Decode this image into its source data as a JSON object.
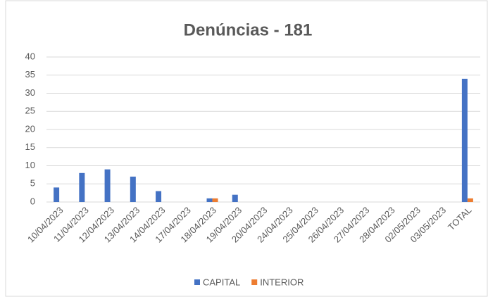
{
  "chart_data": {
    "type": "bar",
    "title": "Denúncias - 181",
    "categories": [
      "10/04/2023",
      "11/04/2023",
      "12/04/2023",
      "13/04/2023",
      "14/04/2023",
      "17/04/2023",
      "18/04/2023",
      "19/04/2023",
      "20/04/2023",
      "24/04/2023",
      "25/04/2023",
      "26/04/2023",
      "27/04/2023",
      "28/04/2023",
      "02/05/2023",
      "03/05/2023",
      "TOTAL"
    ],
    "series": [
      {
        "name": "CAPITAL",
        "color": "#4472c4",
        "values": [
          4,
          8,
          9,
          7,
          3,
          0,
          1,
          2,
          0,
          0,
          0,
          0,
          0,
          0,
          0,
          0,
          34
        ]
      },
      {
        "name": "INTERIOR",
        "color": "#ed7d31",
        "values": [
          0,
          0,
          0,
          0,
          0,
          0,
          1,
          0,
          0,
          0,
          0,
          0,
          0,
          0,
          0,
          0,
          1
        ]
      }
    ],
    "ylim": [
      0,
      40
    ],
    "yticks": [
      0,
      5,
      10,
      15,
      20,
      25,
      30,
      35,
      40
    ],
    "grid": true,
    "legend": "bottom"
  }
}
